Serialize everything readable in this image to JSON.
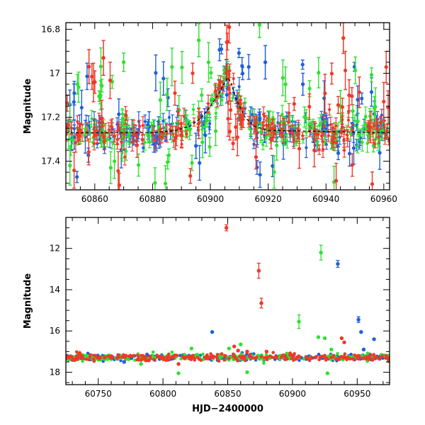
{
  "chart_data": [
    {
      "type": "scatter",
      "panel": "top",
      "title": "",
      "xlabel": "",
      "ylabel": "Magnitude",
      "xlim": [
        60850,
        60962
      ],
      "ylim": [
        17.53,
        16.77
      ],
      "y_inverted": true,
      "xticks": [
        60860,
        60880,
        60900,
        60920,
        60940,
        60960
      ],
      "yticks": [
        16.8,
        17,
        17.2,
        17.4
      ],
      "ytick_labels": [
        "16.8",
        "17",
        "17.2",
        "17.4"
      ],
      "grid": false,
      "legend": "none",
      "series": [
        {
          "color": "#2060d8",
          "error_bars": true,
          "sample": {
            "x": [
              60852,
              60880,
              60895,
              60898,
              60905.5,
              60914,
              60919,
              60932,
              60951
            ],
            "y": [
              17.3,
              17.28,
              17.33,
              17.22,
              16.98,
              17.22,
              16.95,
              17.05,
              17.12
            ]
          }
        },
        {
          "color": "#30e030",
          "error_bars": true,
          "sample": {
            "x": [
              60854,
              60862,
              60870,
              60896,
              60906,
              60917,
              60926,
              60945
            ],
            "y": [
              17.05,
              17.1,
              16.95,
              16.85,
              17.0,
              16.78,
              17.05,
              17.15
            ]
          }
        },
        {
          "color": "#f03828",
          "error_bars": true,
          "sample": {
            "x": [
              60858,
              60860,
              60863,
              60890,
              60906.5,
              60911,
              60921,
              60946,
              60948
            ],
            "y": [
              16.97,
              17.04,
              16.93,
              17.28,
              16.79,
              17.2,
              17.3,
              16.84,
              17.1
            ]
          }
        }
      ],
      "model_curve": {
        "color": "#000000",
        "x": [
          60850,
          60880,
          60888,
          60893,
          60897,
          60900,
          60903,
          60905,
          60906,
          60907,
          60909,
          60912,
          60915,
          60920,
          60962
        ],
        "y": [
          17.27,
          17.27,
          17.26,
          17.24,
          17.2,
          17.15,
          17.09,
          17.04,
          17.02,
          17.04,
          17.12,
          17.2,
          17.24,
          17.26,
          17.27
        ]
      }
    },
    {
      "type": "scatter",
      "panel": "bottom",
      "title": "",
      "xlabel": "HJD−2400000",
      "ylabel": "Magnitude",
      "xlim": [
        60725,
        60975
      ],
      "ylim": [
        18.6,
        10.5
      ],
      "y_inverted": true,
      "xticks": [
        60750,
        60800,
        60850,
        60900,
        60950
      ],
      "yticks": [
        12,
        14,
        16,
        18
      ],
      "ytick_labels": [
        "12",
        "14",
        "16",
        "18"
      ],
      "grid": false,
      "legend": "none",
      "series": [
        {
          "color": "#2060d8",
          "outliers": {
            "x": [
              60770,
              60838,
              60935,
              60951,
              60953,
              60955,
              60963
            ],
            "y": [
              17.5,
              16.05,
              12.75,
              15.45,
              16.05,
              16.9,
              16.4
            ]
          }
        },
        {
          "color": "#30e030",
          "outliers": {
            "x": [
              60783,
              60812,
              60822,
              60851,
              60860,
              60865,
              60905,
              60920,
              60922,
              60925,
              60927,
              60930
            ],
            "y": [
              17.6,
              18.05,
              16.85,
              16.85,
              16.65,
              18.0,
              15.55,
              16.3,
              12.2,
              16.35,
              18.05,
              16.9
            ]
          }
        },
        {
          "color": "#f03828",
          "outliers": {
            "x": [
              60812,
              60849,
              60855,
              60858,
              60865,
              60874,
              60876,
              60880,
              60938,
              60940
            ],
            "y": [
              17.6,
              11.0,
              16.75,
              16.95,
              17.0,
              13.08,
              14.65,
              17.0,
              16.35,
              16.55
            ]
          }
        }
      ]
    }
  ]
}
